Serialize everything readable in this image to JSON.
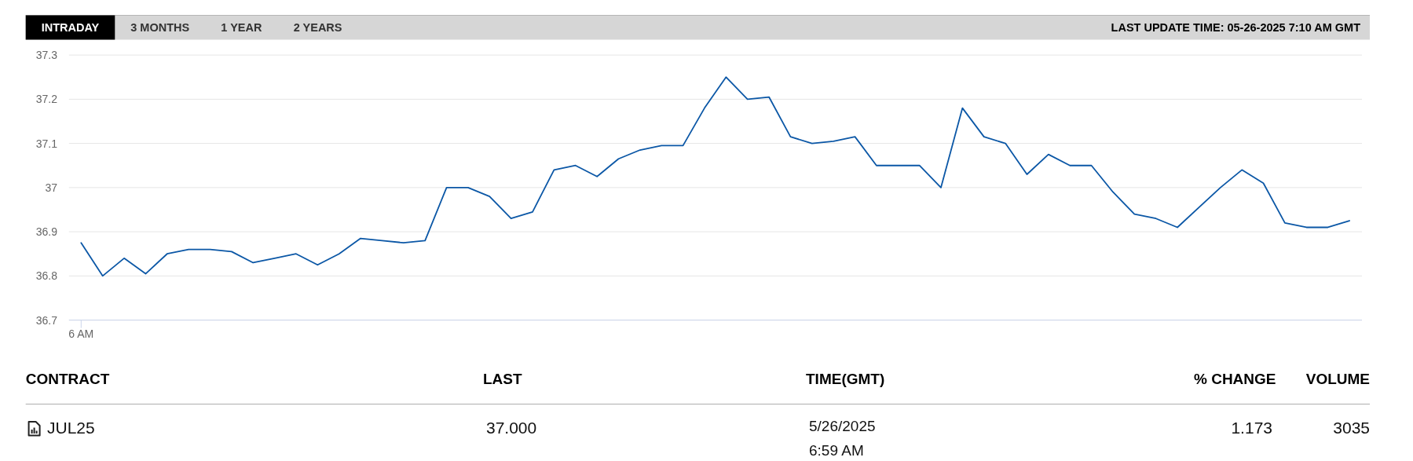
{
  "chart_data": [
    {
      "type": "line",
      "categories": [
        "6 AM",
        null,
        null,
        null,
        null,
        null,
        null,
        null,
        null,
        null,
        null,
        null,
        null,
        null,
        null,
        null,
        null,
        null,
        null,
        null,
        null,
        null,
        null,
        null,
        null,
        null,
        null,
        null,
        null,
        null,
        null,
        null,
        null,
        null,
        null,
        null,
        null,
        null,
        null,
        null,
        null,
        null,
        null,
        null,
        null,
        null,
        null,
        null,
        null,
        null,
        null,
        null,
        null,
        null,
        null,
        null,
        null,
        null,
        null,
        null
      ],
      "values": [
        36.875,
        36.8,
        36.84,
        36.805,
        36.85,
        36.86,
        36.86,
        36.855,
        36.83,
        36.84,
        36.85,
        36.825,
        36.85,
        36.885,
        36.88,
        36.875,
        36.88,
        37.0,
        37.0,
        36.98,
        36.93,
        36.945,
        37.04,
        37.05,
        37.025,
        37.065,
        37.085,
        37.095,
        37.095,
        37.18,
        37.25,
        37.2,
        37.205,
        37.115,
        37.1,
        37.105,
        37.115,
        37.05,
        37.05,
        37.05,
        37.0,
        37.18,
        37.115,
        37.1,
        37.03,
        37.075,
        37.05,
        37.05,
        36.99,
        36.94,
        36.93,
        36.91,
        36.955,
        37.0,
        37.04,
        37.01,
        36.92,
        36.91,
        36.91,
        36.925
      ],
      "color": "#0b57a6",
      "ylim": [
        36.7,
        37.3
      ],
      "yticks": [
        36.7,
        36.8,
        36.9,
        37,
        37.1,
        37.2,
        37.3
      ],
      "grid": "y",
      "annotations": [
        "INTRADAY",
        "3 MONTHS",
        "1 YEAR",
        "2 YEARS",
        "LAST UPDATE TIME: 05-26-2025 7:10 AM GMT"
      ]
    },
    {
      "type": "other",
      "annotations": [
        "CONTRACT",
        "LAST",
        "TIME(GMT)",
        "% CHANGE",
        "VOLUME",
        "JUL25",
        "37.000",
        "5/26/2025",
        "6:59 AM",
        "1.173",
        "3035"
      ]
    }
  ]
}
